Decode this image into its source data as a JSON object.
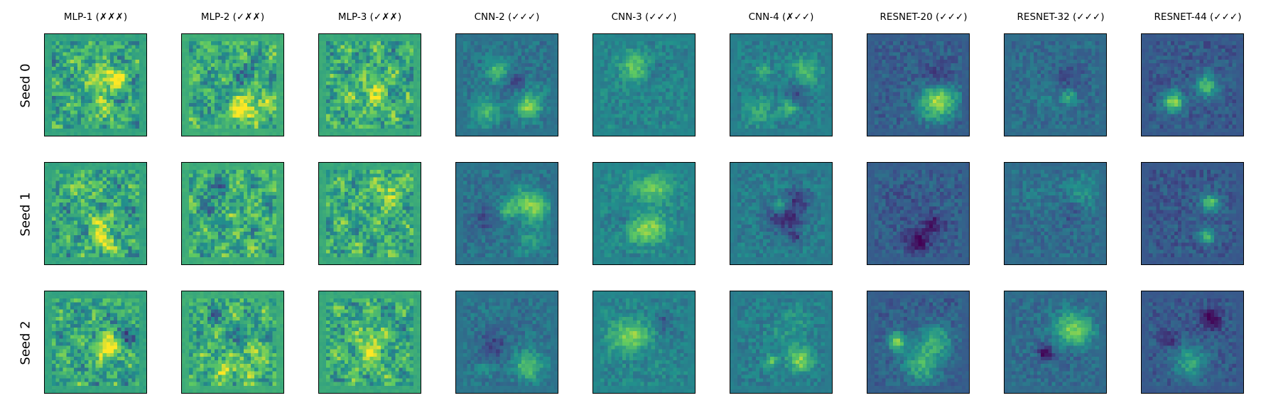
{
  "figure": {
    "columns": [
      {
        "title": "MLP-1 (✗✗✗)",
        "family": "mlp",
        "tone": 0.58
      },
      {
        "title": "MLP-2 (✓✗✗)",
        "family": "mlp",
        "tone": 0.62
      },
      {
        "title": "MLP-3 (✓✗✗)",
        "family": "mlp",
        "tone": 0.6
      },
      {
        "title": "CNN-2 (✓✓✓)",
        "family": "cnn",
        "tone": 0.38
      },
      {
        "title": "CNN-3 (✓✓✓)",
        "family": "cnn",
        "tone": 0.45
      },
      {
        "title": "CNN-4 (✗✓✓)",
        "family": "cnn",
        "tone": 0.42
      },
      {
        "title": "RESNET-20 (✓✓✓)",
        "family": "resnet",
        "tone": 0.3
      },
      {
        "title": "RESNET-32 (✓✓✓)",
        "family": "resnet",
        "tone": 0.35
      },
      {
        "title": "RESNET-44 (✓✓✓)",
        "family": "resnet",
        "tone": 0.28
      }
    ],
    "rows": [
      {
        "label": "Seed 0"
      },
      {
        "label": "Seed 1"
      },
      {
        "label": "Seed 2"
      }
    ],
    "colormap": [
      "#440154",
      "#3b528b",
      "#21918c",
      "#5ec962",
      "#fde725"
    ]
  }
}
